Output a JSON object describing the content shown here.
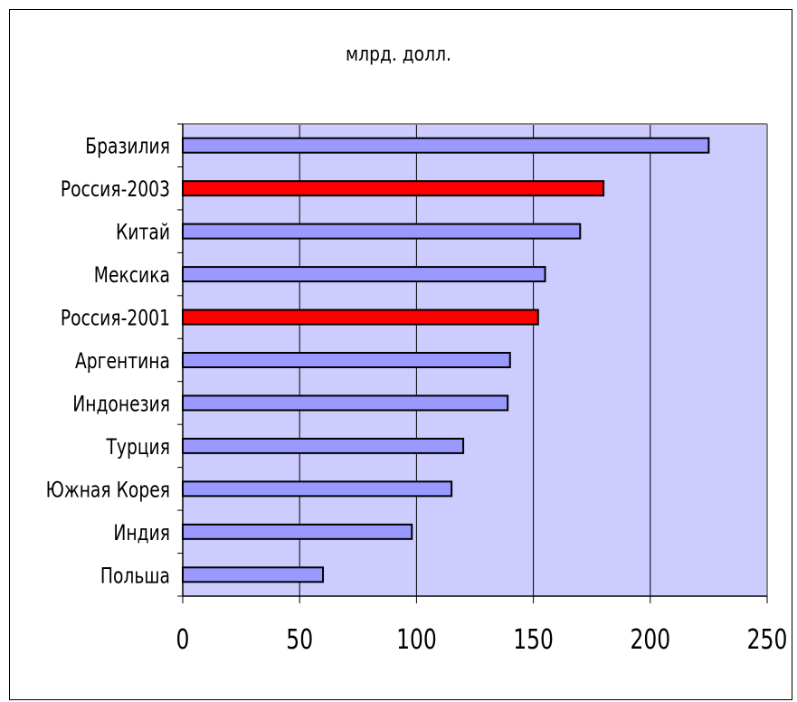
{
  "chart_data": {
    "type": "bar",
    "orientation": "horizontal",
    "title": "млрд. долл.",
    "xlabel": "",
    "ylabel": "",
    "xlim": [
      0,
      250
    ],
    "xticks": [
      0,
      50,
      100,
      150,
      200,
      250
    ],
    "grid": true,
    "categories": [
      "Бразилия",
      "Россия-2003",
      "Китай",
      "Мексика",
      "Россия-2001",
      "Аргентина",
      "Индонезия",
      "Турция",
      "Южная Корея",
      "Индия",
      "Польша"
    ],
    "values": [
      225,
      180,
      170,
      155,
      152,
      140,
      139,
      120,
      115,
      98,
      60
    ],
    "colors": [
      "#9999ff",
      "#ff0000",
      "#9999ff",
      "#9999ff",
      "#ff0000",
      "#9999ff",
      "#9999ff",
      "#9999ff",
      "#9999ff",
      "#9999ff",
      "#9999ff"
    ],
    "plot_background": "#ccccff"
  }
}
